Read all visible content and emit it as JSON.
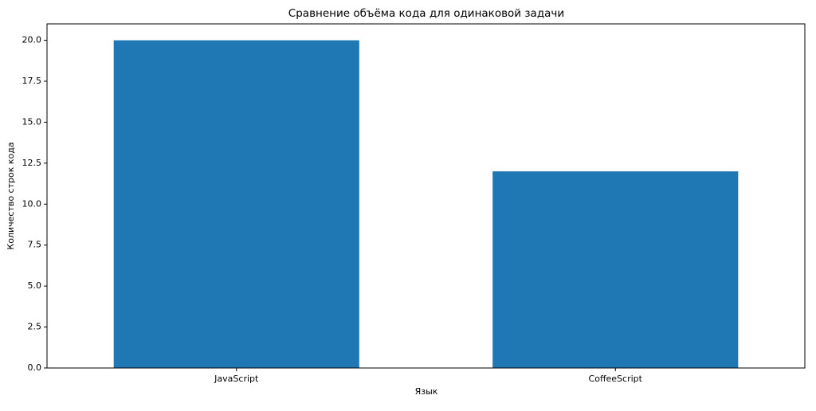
{
  "chart_data": {
    "type": "bar",
    "title": "Сравнение объёма кода для одинаковой задачи",
    "x_label": "Язык",
    "y_label": "Количество строк кода",
    "categories": [
      "JavaScript",
      "CoffeeScript"
    ],
    "values": [
      20,
      12
    ],
    "color": "#1f77b4",
    "ylim": [
      0,
      21
    ],
    "yticks": [
      {
        "value": 0,
        "label": "0.0"
      },
      2.5,
      {
        "value": 5,
        "label": "5.0"
      },
      7.5,
      {
        "value": 10,
        "label": "10.0"
      },
      12.5,
      {
        "value": 15,
        "label": "15.0"
      },
      17.5,
      {
        "value": 20,
        "label": "20.0"
      }
    ],
    "grid": false
  }
}
